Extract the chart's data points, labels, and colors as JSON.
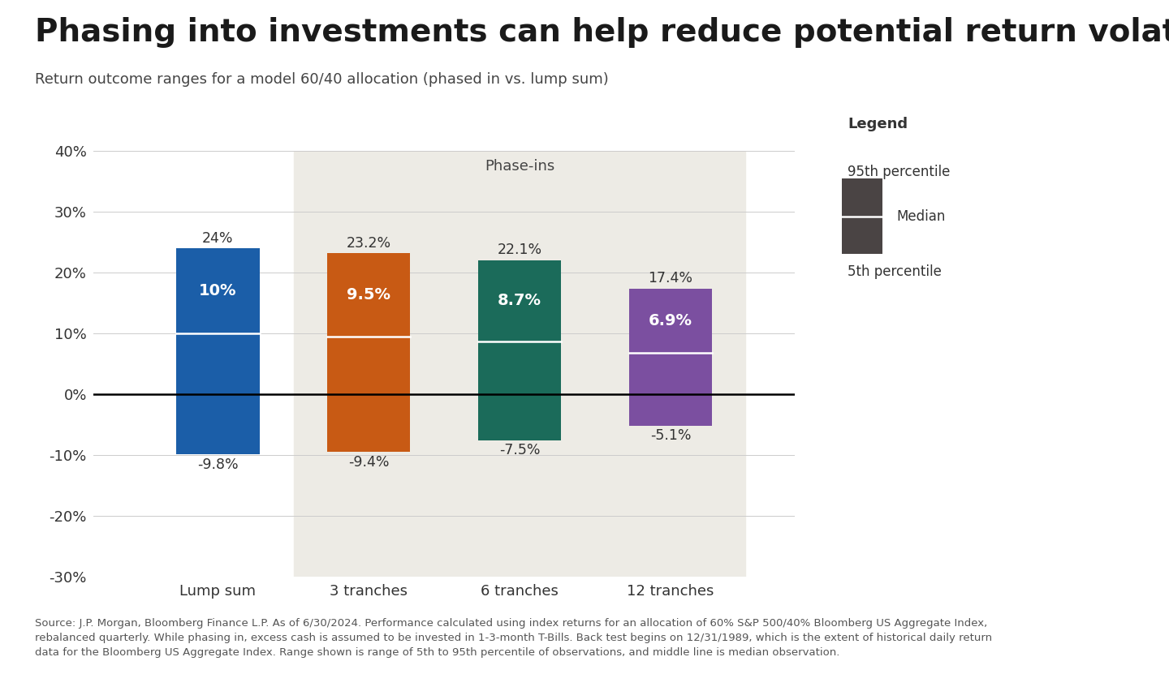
{
  "title": "Phasing into investments can help reduce potential return volatility",
  "subtitle": "Return outcome ranges for a model 60/40 allocation (phased in vs. lump sum)",
  "categories": [
    "Lump sum",
    "3 tranches",
    "6 tranches",
    "12 tranches"
  ],
  "p95": [
    24.0,
    23.2,
    22.1,
    17.4
  ],
  "median": [
    10.0,
    9.5,
    8.7,
    6.9
  ],
  "p5": [
    -9.8,
    -9.4,
    -7.5,
    -5.1
  ],
  "bar_colors": [
    "#1B5EA8",
    "#C85A14",
    "#1B6B5A",
    "#7B4FA0"
  ],
  "phase_in_bg": "#EDEBE5",
  "phase_in_label": "Phase-ins",
  "ylim": [
    -30,
    40
  ],
  "yticks": [
    -30,
    -20,
    -10,
    0,
    10,
    20,
    30,
    40
  ],
  "source_text": "Source: J.P. Morgan, Bloomberg Finance L.P. As of 6/30/2024. Performance calculated using index returns for an allocation of 60% S&P 500/40% Bloomberg US Aggregate Index,\nrebalanced quarterly. While phasing in, excess cash is assumed to be invested in 1-3-month T-Bills. Back test begins on 12/31/1989, which is the extent of historical daily return\ndata for the Bloomberg US Aggregate Index. Range shown is range of 5th to 95th percentile of observations, and middle line is median observation.",
  "legend_color": "#4A4444",
  "background_color": "#FFFFFF",
  "title_fontsize": 28,
  "subtitle_fontsize": 13,
  "tick_fontsize": 13,
  "label_fontsize": 12.5,
  "median_label_fontsize": 14,
  "source_fontsize": 9.5
}
